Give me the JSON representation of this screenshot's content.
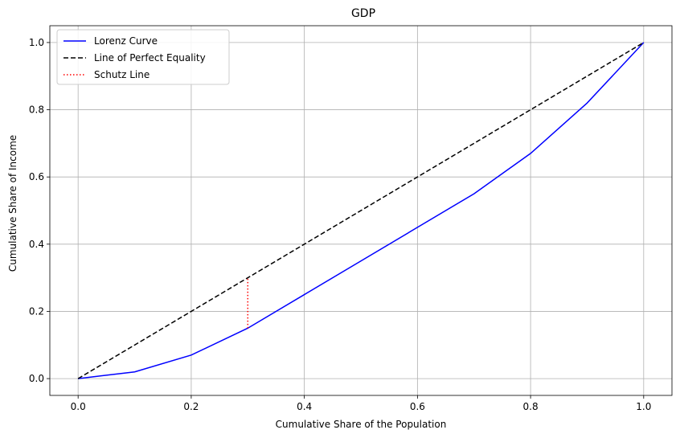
{
  "chart_data": {
    "type": "line",
    "title": "GDP",
    "xlabel": "Cumulative Share of the Population",
    "ylabel": "Cumulative Share of Income",
    "xlim": [
      -0.05,
      1.05
    ],
    "ylim": [
      -0.05,
      1.05
    ],
    "xticks": [
      0.0,
      0.2,
      0.4,
      0.6,
      0.8,
      1.0
    ],
    "xtick_labels": [
      "0.0",
      "0.2",
      "0.4",
      "0.6",
      "0.8",
      "1.0"
    ],
    "yticks": [
      0.0,
      0.2,
      0.4,
      0.6,
      0.8,
      1.0
    ],
    "ytick_labels": [
      "0.0",
      "0.2",
      "0.4",
      "0.6",
      "0.8",
      "1.0"
    ],
    "grid": true,
    "legend_position": "top-left",
    "series": [
      {
        "name": "Lorenz Curve",
        "color": "#0000ff",
        "style": "solid",
        "x": [
          0.0,
          0.1,
          0.2,
          0.3,
          0.4,
          0.5,
          0.6,
          0.7,
          0.8,
          0.9,
          1.0
        ],
        "y": [
          0.0,
          0.02,
          0.07,
          0.15,
          0.25,
          0.35,
          0.45,
          0.55,
          0.67,
          0.82,
          1.0
        ]
      },
      {
        "name": "Line of Perfect Equality",
        "color": "#000000",
        "style": "dashed",
        "x": [
          0.0,
          1.0
        ],
        "y": [
          0.0,
          1.0
        ]
      },
      {
        "name": "Schutz Line",
        "color": "#ff0000",
        "style": "dotted",
        "x": [
          0.3,
          0.3
        ],
        "y": [
          0.15,
          0.3
        ]
      }
    ]
  }
}
